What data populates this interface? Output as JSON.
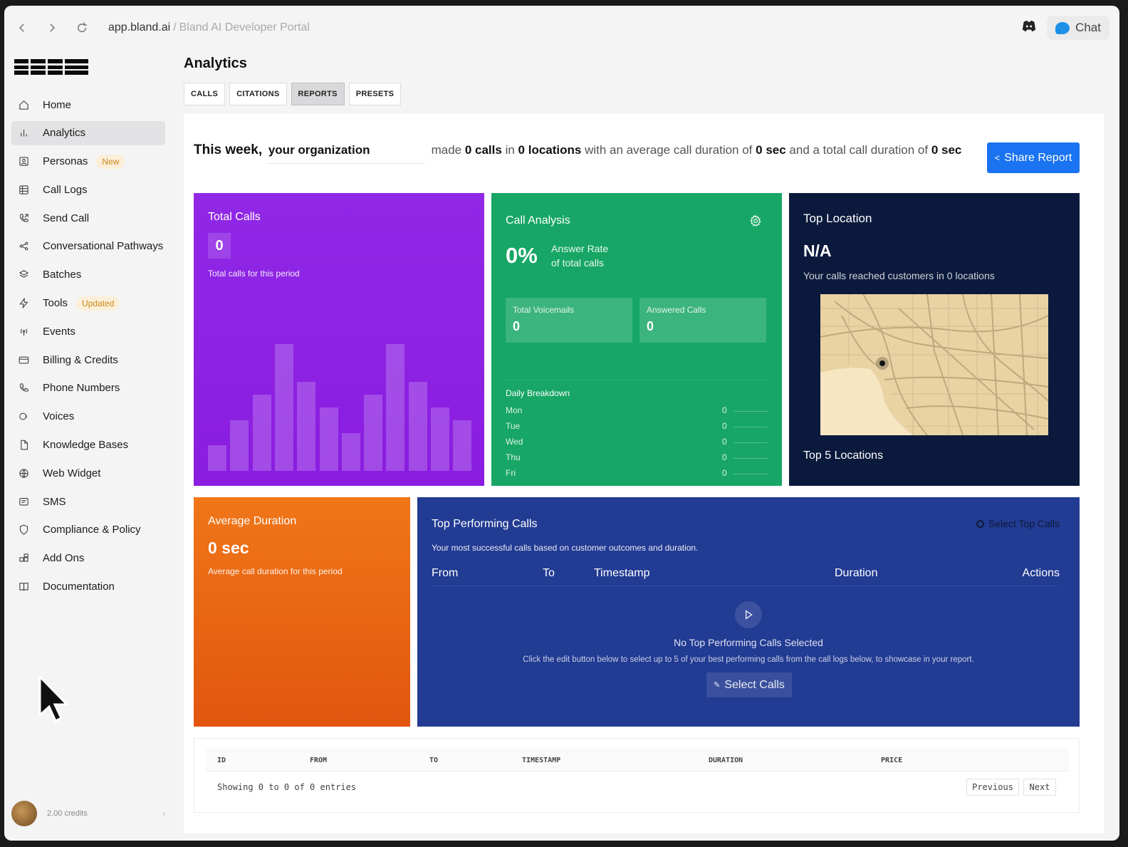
{
  "browser": {
    "url_host": "app.bland.ai",
    "url_sep": "/",
    "url_title": "Bland AI Developer Portal",
    "chat_label": "Chat"
  },
  "sidebar": {
    "items": [
      {
        "label": "Home",
        "icon": "home-icon"
      },
      {
        "label": "Analytics",
        "icon": "bar-chart-icon",
        "active": true
      },
      {
        "label": "Personas",
        "icon": "persona-icon",
        "badge": "New"
      },
      {
        "label": "Call Logs",
        "icon": "table-icon"
      },
      {
        "label": "Send Call",
        "icon": "phone-outgoing-icon"
      },
      {
        "label": "Conversational Pathways",
        "icon": "share-nodes-icon"
      },
      {
        "label": "Batches",
        "icon": "layers-icon"
      },
      {
        "label": "Tools",
        "icon": "bolt-icon",
        "badge": "Updated"
      },
      {
        "label": "Events",
        "icon": "broadcast-icon"
      },
      {
        "label": "Billing & Credits",
        "icon": "credit-card-icon"
      },
      {
        "label": "Phone Numbers",
        "icon": "phone-icon"
      },
      {
        "label": "Voices",
        "icon": "voice-icon"
      },
      {
        "label": "Knowledge Bases",
        "icon": "file-icon"
      },
      {
        "label": "Web Widget",
        "icon": "globe-icon"
      },
      {
        "label": "SMS",
        "icon": "message-icon"
      },
      {
        "label": "Compliance & Policy",
        "icon": "shield-icon"
      },
      {
        "label": "Add Ons",
        "icon": "puzzle-icon"
      },
      {
        "label": "Documentation",
        "icon": "book-icon"
      }
    ],
    "credits": "2.00 credits"
  },
  "page": {
    "title": "Analytics",
    "tabs": [
      {
        "label": "CALLS"
      },
      {
        "label": "CITATIONS"
      },
      {
        "label": "REPORTS",
        "active": true
      },
      {
        "label": "PRESETS"
      }
    ]
  },
  "summary": {
    "lead": "This week,",
    "org": "your organization",
    "t1": "made",
    "calls": "0 calls",
    "t2": "in",
    "locations": "0 locations",
    "t3": "with an average call duration of",
    "avg": "0 sec",
    "t4": "and a total call duration of",
    "total": "0 sec",
    "share_label": "Share Report"
  },
  "total_calls": {
    "title": "Total Calls",
    "value": "0",
    "sub": "Total calls for this period",
    "bar_levels": [
      0.2,
      0.4,
      0.6,
      1.0,
      0.7,
      0.5,
      0.3,
      0.6,
      1.0,
      0.7,
      0.5,
      0.4
    ]
  },
  "call_analysis": {
    "title": "Call Analysis",
    "rate": "0%",
    "rate_label_1": "Answer Rate",
    "rate_label_2": "of total calls",
    "voicemails_label": "Total Voicemails",
    "voicemails_value": "0",
    "answered_label": "Answered Calls",
    "answered_value": "0",
    "daily_title": "Daily Breakdown",
    "days": [
      {
        "day": "Mon",
        "value": "0"
      },
      {
        "day": "Tue",
        "value": "0"
      },
      {
        "day": "Wed",
        "value": "0"
      },
      {
        "day": "Thu",
        "value": "0"
      },
      {
        "day": "Fri",
        "value": "0"
      }
    ]
  },
  "top_location": {
    "title": "Top Location",
    "value": "N/A",
    "sub": "Your calls reached customers in 0 locations",
    "top5": "Top 5 Locations"
  },
  "avg_duration": {
    "title": "Average Duration",
    "value": "0 sec",
    "sub": "Average call duration for this period"
  },
  "top_performing": {
    "title": "Top Performing Calls",
    "desc": "Your most successful calls based on customer outcomes and duration.",
    "select_top": "Select Top Calls",
    "columns": [
      "From",
      "To",
      "Timestamp",
      "Duration",
      "Actions"
    ],
    "empty_title": "No Top Performing Calls Selected",
    "empty_desc": "Click the edit button below to select up to 5 of your best performing calls from the call logs below, to showcase in your report.",
    "select_calls": "Select Calls"
  },
  "table": {
    "columns": [
      "ID",
      "FROM",
      "TO",
      "TIMESTAMP",
      "DURATION",
      "PRICE"
    ],
    "showing": "Showing 0 to 0 of 0 entries",
    "prev": "Previous",
    "next": "Next"
  },
  "colors": {
    "purple": "#8a1de0",
    "green": "#17a665",
    "navy": "#0b1a3c",
    "orange": "#e8620f",
    "blue": "#223b93",
    "accent": "#1a73f0"
  }
}
